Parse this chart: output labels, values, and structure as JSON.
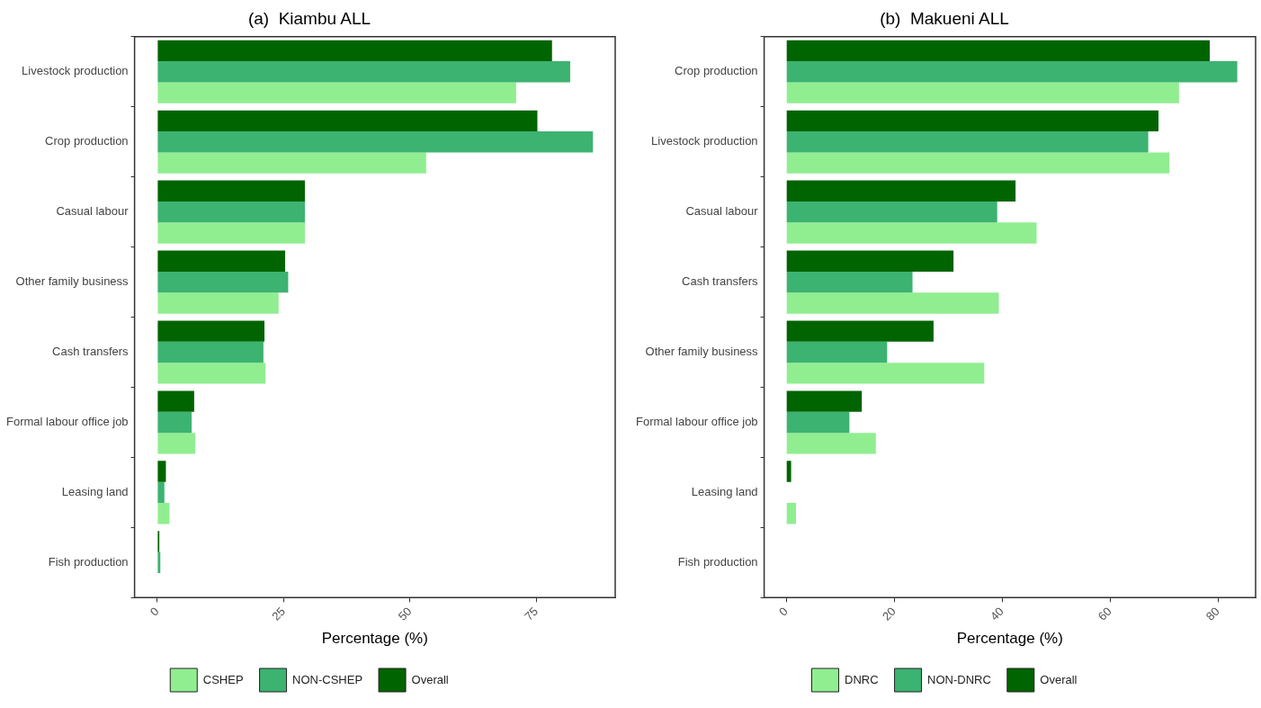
{
  "chart_data": [
    {
      "type": "bar",
      "orientation": "horizontal",
      "title": "(a)  Kiambu ALL",
      "xlabel": "Percentage (%)",
      "categories": [
        "Livestock production",
        "Crop production",
        "Casual labour",
        "Other family business",
        "Cash transfers",
        "Formal labour office job",
        "Leasing land",
        "Fish production"
      ],
      "series": [
        {
          "name": "CSHEP",
          "color": "#90ee90",
          "values": [
            71.0,
            53.2,
            29.2,
            24.0,
            21.4,
            7.5,
            2.4,
            0
          ]
        },
        {
          "name": "NON-CSHEP",
          "color": "#3cb371",
          "values": [
            81.7,
            86.2,
            29.2,
            25.9,
            21.0,
            6.8,
            1.4,
            0.6
          ]
        },
        {
          "name": "Overall",
          "color": "#006400",
          "values": [
            78.1,
            75.2,
            29.2,
            25.3,
            21.2,
            7.3,
            1.7,
            0.4
          ]
        }
      ],
      "xlim": [
        -4.5,
        90.6
      ],
      "xticks": [
        0,
        25,
        50,
        75
      ],
      "grid": false,
      "legend": "bottom"
    },
    {
      "type": "bar",
      "orientation": "horizontal",
      "title": "(b)  Makueni ALL",
      "xlabel": "Percentage (%)",
      "categories": [
        "Crop production",
        "Livestock production",
        "Casual labour",
        "Cash transfers",
        "Other family business",
        "Formal labour office job",
        "Leasing land",
        "Fish production"
      ],
      "series": [
        {
          "name": "DNRC",
          "color": "#90ee90",
          "values": [
            72.8,
            71.0,
            46.4,
            39.4,
            36.7,
            16.6,
            1.8,
            0
          ]
        },
        {
          "name": "NON-DNRC",
          "color": "#3cb371",
          "values": [
            83.6,
            67.1,
            39.1,
            23.4,
            18.7,
            11.7,
            0,
            0
          ]
        },
        {
          "name": "Overall",
          "color": "#006400",
          "values": [
            78.5,
            69.0,
            42.5,
            31.0,
            27.3,
            14.0,
            0.9,
            0
          ]
        }
      ],
      "xlim": [
        -4.1,
        87.0
      ],
      "xticks": [
        0,
        20,
        40,
        60,
        80
      ],
      "grid": false,
      "legend": "bottom"
    }
  ]
}
